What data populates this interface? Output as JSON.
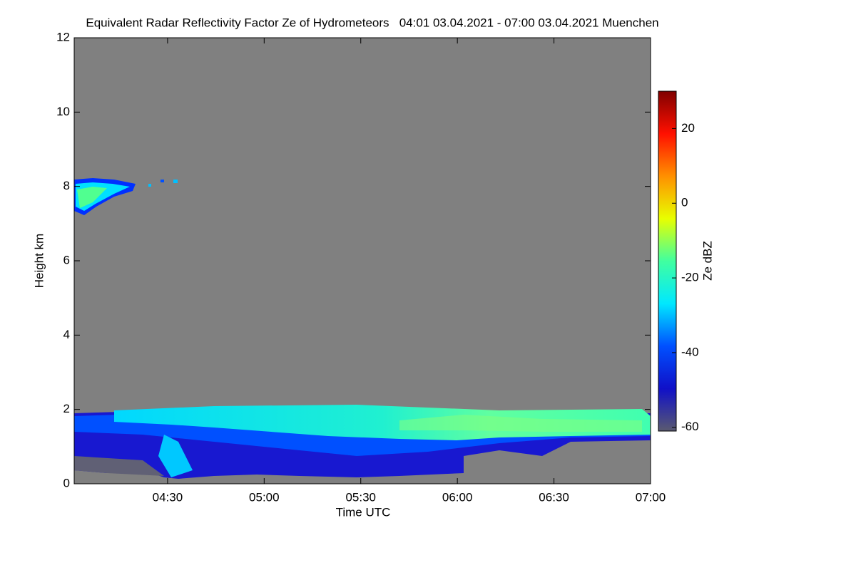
{
  "chart_data": {
    "type": "heatmap",
    "title": "Equivalent Radar Reflectivity Factor Ze of Hydrometeors   04:01 03.04.2021 - 07:00 03.04.2021 Muenchen",
    "x_label": "Time UTC",
    "y_label": "Height km",
    "colorbar_label": "Ze dBZ",
    "xlim": [
      241,
      420
    ],
    "xticks": [
      {
        "value": 270,
        "label": "04:30"
      },
      {
        "value": 300,
        "label": "05:00"
      },
      {
        "value": 330,
        "label": "05:30"
      },
      {
        "value": 360,
        "label": "06:00"
      },
      {
        "value": 390,
        "label": "06:30"
      },
      {
        "value": 420,
        "label": "07:00"
      }
    ],
    "ylim": [
      0,
      12
    ],
    "yticks": [
      0,
      2,
      4,
      6,
      8,
      10,
      12
    ],
    "clim": [
      -61,
      30
    ],
    "cticks": [
      -60,
      -40,
      -20,
      0,
      20
    ],
    "colormap": [
      "#5a5a70",
      "#1010c8",
      "#0050ff",
      "#00e8ff",
      "#40ffa0",
      "#e8ff00",
      "#ff9000",
      "#ff1000",
      "#800000"
    ],
    "background": "#808080"
  }
}
